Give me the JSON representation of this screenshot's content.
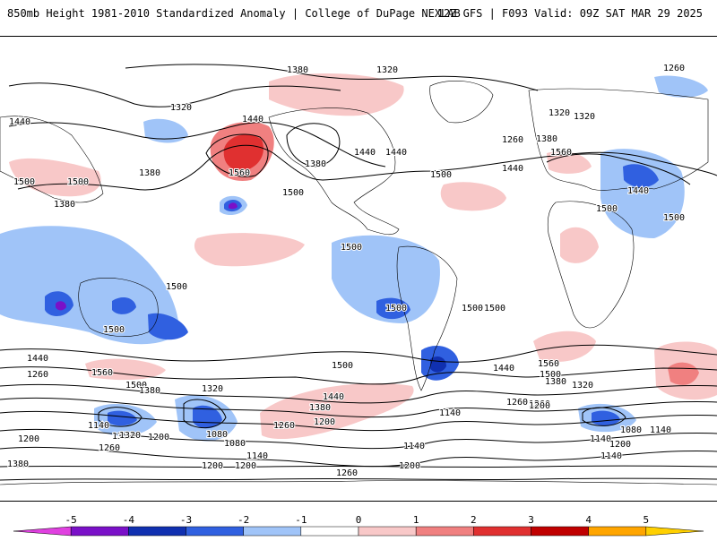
{
  "header": {
    "title": "850mb Height 1981-2010 Standardized Anomaly | College of DuPage NEXLAB",
    "run_info": "12Z GFS | F093 Valid: 09Z SAT MAR 29 2025"
  },
  "map": {
    "contour_labels": [
      "1260",
      "1320",
      "1380",
      "1440",
      "1500",
      "1560",
      "1140",
      "1200",
      "1080"
    ],
    "height_labels": [
      {
        "text": "1380"
      },
      {
        "text": "1320"
      },
      {
        "text": "1260"
      },
      {
        "text": "1440"
      },
      {
        "text": "1320"
      },
      {
        "text": "1440"
      },
      {
        "text": "1380"
      },
      {
        "text": "1500"
      },
      {
        "text": "1560"
      },
      {
        "text": "1380"
      },
      {
        "text": "1440"
      },
      {
        "text": "1500"
      },
      {
        "text": "1380"
      },
      {
        "text": "1500"
      },
      {
        "text": "1440"
      },
      {
        "text": "1500"
      },
      {
        "text": "1500"
      },
      {
        "text": "1320"
      },
      {
        "text": "1380"
      },
      {
        "text": "1440"
      },
      {
        "text": "1560"
      },
      {
        "text": "1440"
      },
      {
        "text": "1500"
      },
      {
        "text": "1500"
      },
      {
        "text": "1500"
      },
      {
        "text": "1500"
      },
      {
        "text": "1500"
      },
      {
        "text": "1500"
      },
      {
        "text": "1500"
      },
      {
        "text": "1260"
      },
      {
        "text": "1320"
      },
      {
        "text": "1260"
      },
      {
        "text": "1440"
      },
      {
        "text": "1260"
      },
      {
        "text": "1560"
      },
      {
        "text": "1500"
      },
      {
        "text": "1380"
      },
      {
        "text": "1320"
      },
      {
        "text": "1500"
      },
      {
        "text": "1440"
      },
      {
        "text": "1380"
      },
      {
        "text": "1260"
      },
      {
        "text": "1200"
      },
      {
        "text": "1140"
      },
      {
        "text": "1080"
      },
      {
        "text": "1140"
      },
      {
        "text": "1320"
      },
      {
        "text": "1200"
      },
      {
        "text": "1080"
      },
      {
        "text": "1260"
      },
      {
        "text": "1140"
      },
      {
        "text": "1200"
      },
      {
        "text": "1200"
      },
      {
        "text": "1140"
      },
      {
        "text": "1260"
      },
      {
        "text": "1200"
      },
      {
        "text": "1140"
      },
      {
        "text": "1440"
      },
      {
        "text": "1560"
      },
      {
        "text": "1500"
      },
      {
        "text": "1380"
      },
      {
        "text": "1320"
      },
      {
        "text": "1260"
      },
      {
        "text": "1200"
      },
      {
        "text": "1140"
      },
      {
        "text": "1080"
      },
      {
        "text": "1140"
      },
      {
        "text": "1200"
      },
      {
        "text": "1200"
      },
      {
        "text": "1320"
      },
      {
        "text": "1380"
      }
    ]
  },
  "colorbar": {
    "ticks": [
      "-5",
      "-4",
      "-3",
      "-2",
      "-1",
      "0",
      "1",
      "2",
      "3",
      "4",
      "5"
    ],
    "colors": [
      "#e040e0",
      "#7a10c8",
      "#1030b0",
      "#3060e0",
      "#a0c4f8",
      "#ffffff",
      "#f8c8c8",
      "#f08080",
      "#e03030",
      "#c00000",
      "#ffa500",
      "#ffd000"
    ]
  }
}
